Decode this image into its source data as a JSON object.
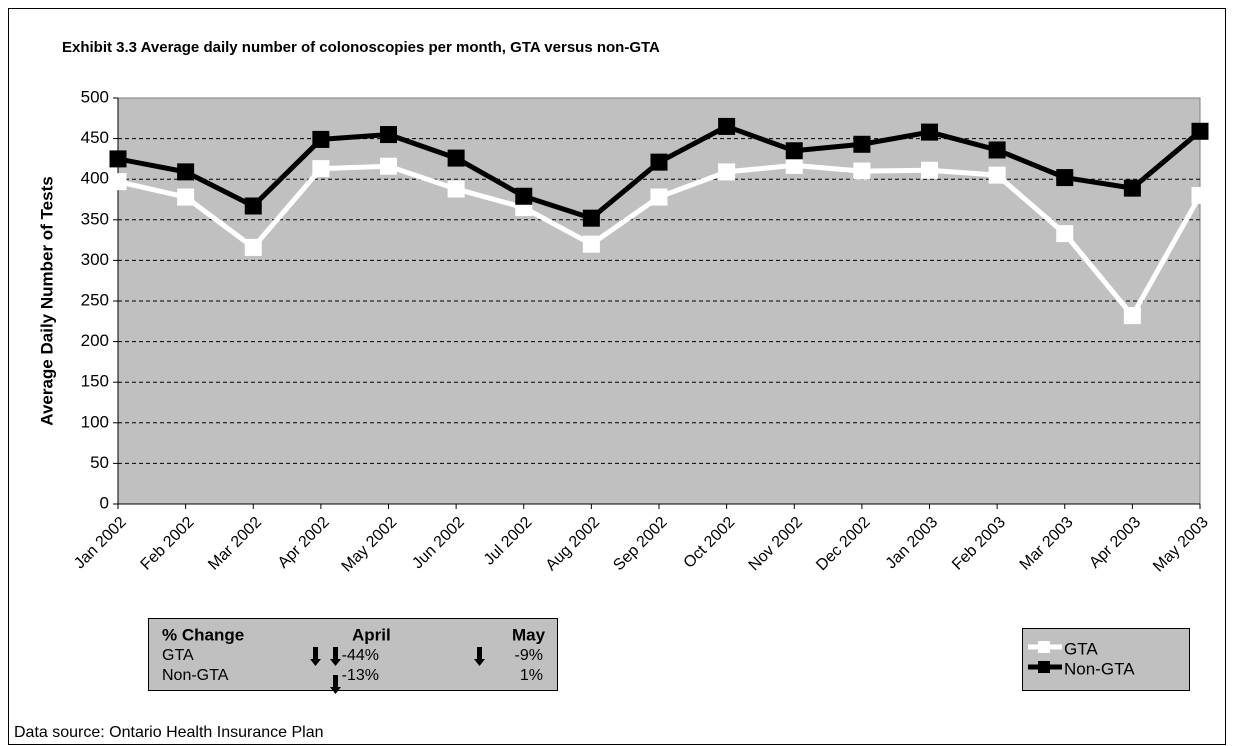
{
  "chart_data": {
    "type": "line",
    "title": "Exhibit 3.3 Average daily number of colonoscopies per month, GTA versus non-GTA",
    "y_label": "Average Daily Number of Tests",
    "categories": [
      "Jan 2002",
      "Feb 2002",
      "Mar 2002",
      "Apr 2002",
      "May 2002",
      "Jun 2002",
      "Jul 2002",
      "Aug 2002",
      "Sep 2002",
      "Oct 2002",
      "Nov 2002",
      "Dec 2002",
      "Jan 2003",
      "Feb 2003",
      "Mar 2003",
      "Apr 2003",
      "May 2003"
    ],
    "series": [
      {
        "name": "GTA",
        "color": "#ffffff",
        "values": [
          397,
          378,
          316,
          413,
          416,
          388,
          365,
          320,
          378,
          409,
          417,
          410,
          411,
          405,
          333,
          232,
          380
        ]
      },
      {
        "name": "Non-GTA",
        "color": "#000000",
        "values": [
          425,
          409,
          367,
          449,
          455,
          426,
          379,
          352,
          421,
          465,
          435,
          443,
          458,
          436,
          402,
          389,
          459
        ]
      }
    ],
    "ylim": [
      0,
      500
    ],
    "yticks": [
      0,
      50,
      100,
      150,
      200,
      250,
      300,
      350,
      400,
      450,
      500
    ],
    "grid": true,
    "legend": "lower-right",
    "change_table": {
      "header": [
        "% Change",
        "April",
        "May"
      ],
      "rows": [
        [
          "GTA",
          "-44%",
          "-9%"
        ],
        [
          "Non-GTA",
          "-13%",
          "1%"
        ]
      ]
    },
    "source": "Data source: Ontario Health Insurance Plan"
  }
}
